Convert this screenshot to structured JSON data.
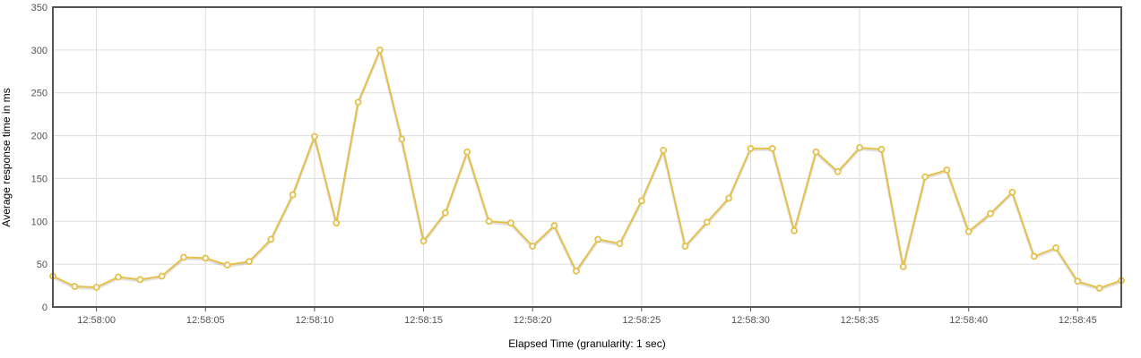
{
  "chart_data": {
    "type": "line",
    "title": "",
    "xlabel": "Elapsed Time (granularity: 1 sec)",
    "ylabel": "Average response time in ms",
    "ylim": [
      0,
      350
    ],
    "yticks": [
      0,
      50,
      100,
      150,
      200,
      250,
      300,
      350
    ],
    "xlim": [
      "12:57:58",
      "12:58:47"
    ],
    "xticks": [
      "12:58:00",
      "12:58:05",
      "12:58:10",
      "12:58:15",
      "12:58:20",
      "12:58:25",
      "12:58:30",
      "12:58:35",
      "12:58:40",
      "12:58:45"
    ],
    "grid": true,
    "series": [
      {
        "color": "#e5c04b",
        "x": [
          "12:57:58",
          "12:57:59",
          "12:58:00",
          "12:58:01",
          "12:58:02",
          "12:58:03",
          "12:58:04",
          "12:58:05",
          "12:58:06",
          "12:58:07",
          "12:58:08",
          "12:58:09",
          "12:58:10",
          "12:58:11",
          "12:58:12",
          "12:58:13",
          "12:58:14",
          "12:58:15",
          "12:58:16",
          "12:58:17",
          "12:58:18",
          "12:58:19",
          "12:58:20",
          "12:58:21",
          "12:58:22",
          "12:58:23",
          "12:58:24",
          "12:58:25",
          "12:58:26",
          "12:58:27",
          "12:58:28",
          "12:58:29",
          "12:58:30",
          "12:58:31",
          "12:58:32",
          "12:58:33",
          "12:58:34",
          "12:58:35",
          "12:58:36",
          "12:58:37",
          "12:58:38",
          "12:58:39",
          "12:58:40",
          "12:58:41",
          "12:58:42",
          "12:58:43",
          "12:58:44",
          "12:58:45",
          "12:58:46",
          "12:58:47"
        ],
        "values": [
          36,
          24,
          23,
          35,
          32,
          36,
          58,
          57,
          49,
          53,
          79,
          131,
          199,
          98,
          239,
          300,
          196,
          77,
          110,
          181,
          100,
          98,
          71,
          95,
          42,
          79,
          74,
          124,
          183,
          71,
          99,
          127,
          185,
          185,
          89,
          181,
          158,
          186,
          184,
          47,
          152,
          160,
          88,
          109,
          134,
          59,
          69,
          30,
          22,
          31
        ]
      }
    ]
  }
}
